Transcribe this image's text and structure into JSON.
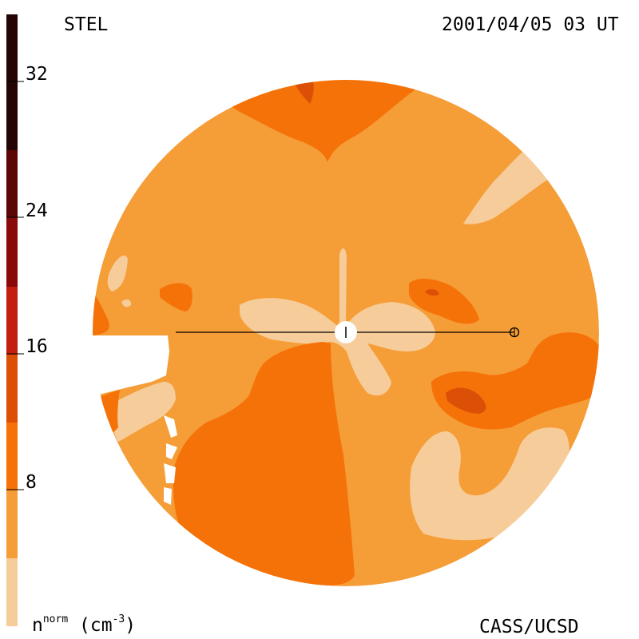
{
  "header": {
    "observatory": "STEL",
    "timestamp": "2001/04/05 03 UT"
  },
  "footer": {
    "units_base": "n",
    "units_sup": "norm",
    "units_suffix": " (cm",
    "units_exp": "-3",
    "units_close": ")",
    "credit": "CASS/UCSD"
  },
  "colorbar": {
    "ticks": [
      "32",
      "24",
      "16",
      "8"
    ],
    "tick_values": [
      32,
      24,
      16,
      8
    ],
    "range": [
      0,
      36
    ],
    "colors": [
      "#f6cc9a",
      "#f59d36",
      "#f57208",
      "#dc4f06",
      "#c41e0e",
      "#8a0a0a",
      "#5c0606",
      "#240404"
    ]
  },
  "map": {
    "colors": {
      "background": "#f59d36",
      "light": "#f6cc9a",
      "medium": "#f57208",
      "dark": "#dc4f06"
    }
  }
}
